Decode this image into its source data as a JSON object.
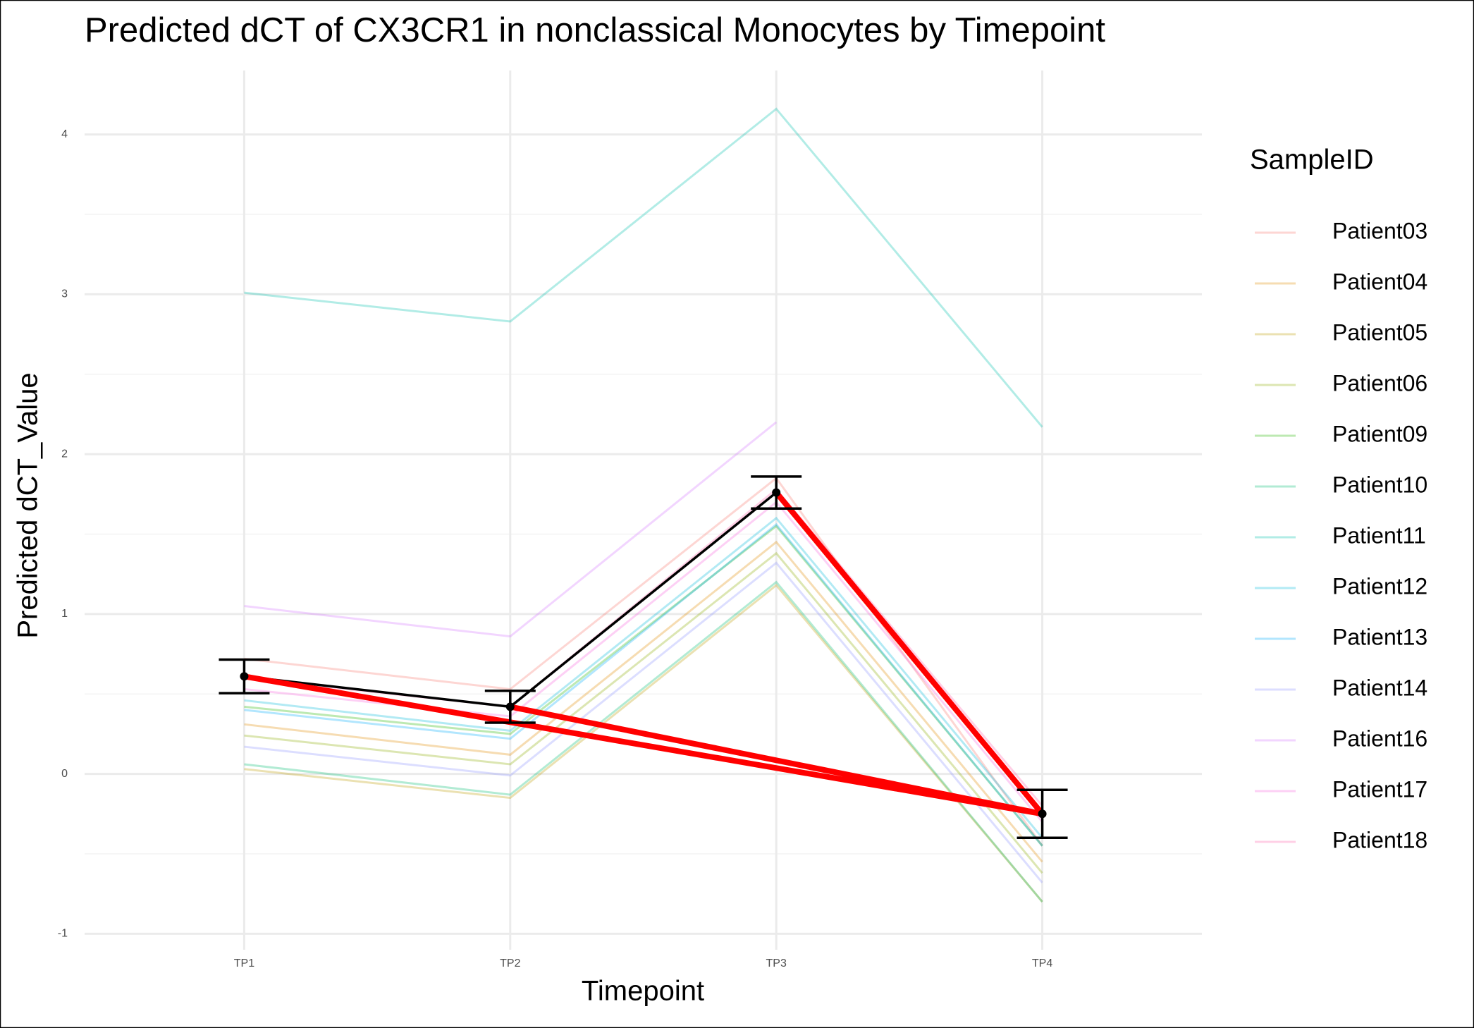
{
  "chart_data": {
    "type": "line",
    "title": "Predicted dCT of  CX3CR1 in  nonclassical  Monocytes by Timepoint",
    "x_label": "Timepoint",
    "y_label": "Predicted dCT_Value",
    "legend_title": "SampleID",
    "categories": [
      "TP1",
      "TP2",
      "TP3",
      "TP4"
    ],
    "ylim": [
      -1.1,
      4.4
    ],
    "yticks": [
      -1,
      0,
      1,
      2,
      3,
      4
    ],
    "minor_yticks": [
      -0.5,
      0.5,
      1.5,
      2.5,
      3.5
    ],
    "grid": true,
    "legend": "right",
    "series": [
      {
        "name": "Patient03",
        "color": "#F8766D",
        "values": [
          0.72,
          0.53,
          1.85,
          -0.45
        ]
      },
      {
        "name": "Patient04",
        "color": "#E18A00",
        "values": [
          0.31,
          0.12,
          1.45,
          -0.55
        ]
      },
      {
        "name": "Patient05",
        "color": "#BE9C00",
        "values": [
          0.03,
          -0.15,
          1.18,
          -0.8
        ]
      },
      {
        "name": "Patient06",
        "color": "#8CAB00",
        "values": [
          0.24,
          0.06,
          1.38,
          -0.62
        ]
      },
      {
        "name": "Patient09",
        "color": "#24B700",
        "values": [
          0.42,
          0.25,
          1.55,
          -0.45
        ]
      },
      {
        "name": "Patient10",
        "color": "#00BE70",
        "values": [
          0.06,
          -0.13,
          1.2,
          -0.8
        ]
      },
      {
        "name": "Patient11",
        "color": "#00C1AB",
        "values": [
          3.01,
          2.83,
          4.16,
          2.17
        ]
      },
      {
        "name": "Patient12",
        "color": "#00BBDA",
        "values": [
          0.46,
          0.27,
          1.6,
          -0.4
        ]
      },
      {
        "name": "Patient13",
        "color": "#00ACFC",
        "values": [
          0.4,
          0.22,
          1.56,
          -0.45
        ]
      },
      {
        "name": "Patient14",
        "color": "#8B93FF",
        "values": [
          0.17,
          -0.01,
          1.32,
          -0.68
        ]
      },
      {
        "name": "Patient16",
        "color": "#D575FE",
        "values": [
          1.05,
          0.86,
          2.2,
          null
        ]
      },
      {
        "name": "Patient17",
        "color": "#F962DD",
        "values": [
          0.53,
          0.36,
          1.7,
          -0.3
        ]
      },
      {
        "name": "Patient18",
        "color": "#FF65AC",
        "values": [
          0.6,
          0.42,
          1.78,
          -0.2
        ]
      }
    ],
    "mean": {
      "color": "#000000",
      "values": [
        0.61,
        0.42,
        1.76,
        -0.25
      ],
      "errors": [
        0.105,
        0.1,
        0.1,
        0.15
      ]
    },
    "overlay": {
      "color": "#FF0000",
      "x": [
        "TP3",
        "TP4",
        "TP1",
        "TP4",
        "TP2"
      ],
      "values": [
        1.76,
        -0.25,
        0.61,
        -0.25,
        0.42
      ]
    }
  }
}
